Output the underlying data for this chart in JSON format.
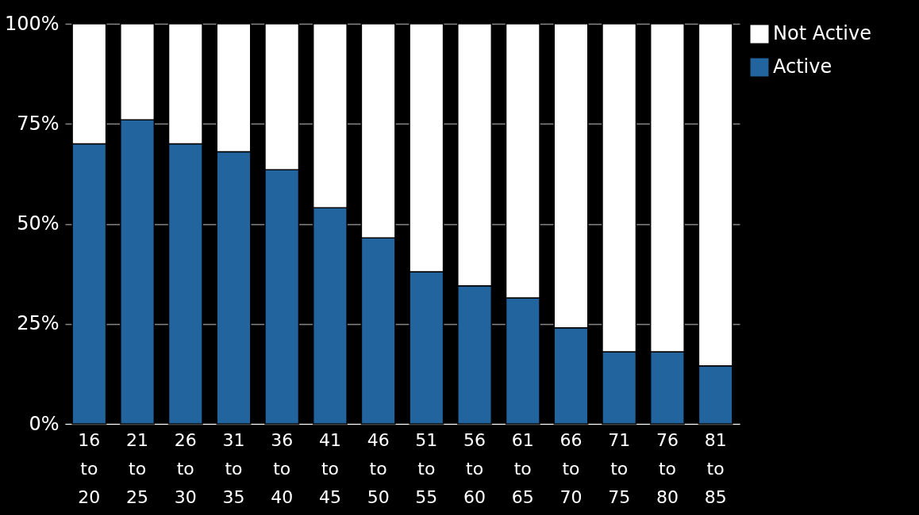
{
  "chart_data": {
    "type": "bar",
    "stacked": true,
    "categories": [
      "16 to 20",
      "21 to 25",
      "26 to 30",
      "31 to 35",
      "36 to 40",
      "41 to 45",
      "46 to 50",
      "51 to 55",
      "56 to 60",
      "61 to 65",
      "66 to 70",
      "71 to 75",
      "76 to 80",
      "81 to 85"
    ],
    "series": [
      {
        "name": "Active",
        "color": "#22649e",
        "values": [
          70,
          76,
          70,
          68,
          63.5,
          54,
          46.5,
          38,
          34.5,
          31.5,
          24,
          18,
          18,
          14.5
        ]
      },
      {
        "name": "Not Active",
        "color": "#ffffff",
        "values": [
          30,
          24,
          30,
          32,
          36.5,
          46,
          53.5,
          62,
          65.5,
          68.5,
          76,
          82,
          82,
          85.5
        ]
      }
    ],
    "ylim": [
      0,
      100
    ],
    "yticks": [
      {
        "value": 0,
        "label": "0%"
      },
      {
        "value": 25,
        "label": "25%"
      },
      {
        "value": 50,
        "label": "50%"
      },
      {
        "value": 75,
        "label": "75%"
      },
      {
        "value": 100,
        "label": "100%"
      }
    ],
    "grid": "y",
    "legend": "top right"
  }
}
